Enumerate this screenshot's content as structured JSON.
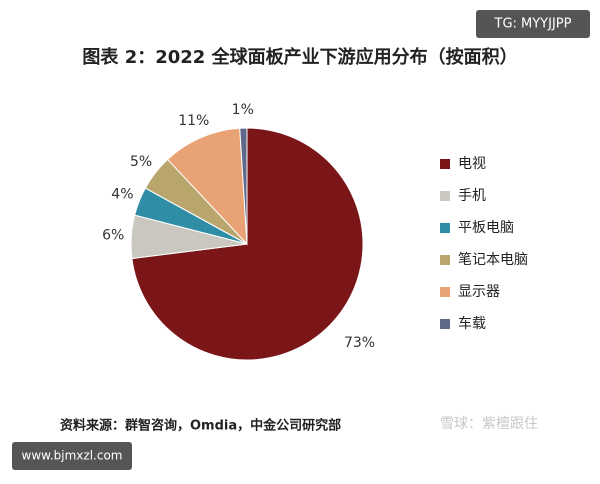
{
  "chart_data": {
    "type": "pie",
    "title": "图表 2：2022 全球面板产业下游应用分布（按面积）",
    "categories": [
      "电视",
      "手机",
      "平板电脑",
      "笔记本电脑",
      "显示器",
      "车载"
    ],
    "values": [
      73,
      6,
      4,
      5,
      11,
      1
    ],
    "value_labels": [
      "73%",
      "6%",
      "4%",
      "5%",
      "11%",
      "1%"
    ],
    "colors": [
      "#7a1518",
      "#c9c7c0",
      "#2f8ea6",
      "#b9a66c",
      "#e8a274",
      "#5f6a8b"
    ],
    "legend": "right",
    "source": "资料来源：群智咨询，Omdia，中金公司研究部"
  },
  "badges": {
    "top": "TG: MYYJJPP",
    "bottom": "www.bjmxzl.com",
    "watermark": "雪球：紫檀跟住"
  }
}
